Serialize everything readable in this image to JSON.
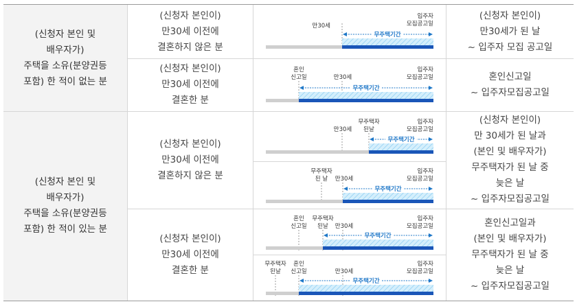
{
  "categories": [
    {
      "lines": [
        "(신청자 본인 및",
        "배우자가)",
        "주택을 소유(분양권등",
        "포함) 한 적이 없는 분"
      ]
    },
    {
      "lines": [
        "(신청자 본인 및",
        "배우자가)",
        "주택을 소유(분양권등",
        "포함) 한 적이 있는 분"
      ]
    }
  ],
  "subcategories": [
    {
      "lines": [
        "(신청자 본인이)",
        "만30세 이전에",
        "결혼하지 않은 분"
      ]
    },
    {
      "lines": [
        "(신청자 본인이)",
        "만30세 이전에",
        "결혼한 분"
      ]
    },
    {
      "lines": [
        "(신청자 본인이)",
        "만30세 이전에",
        "결혼하지 않은 분"
      ]
    },
    {
      "lines": [
        "(신청자 본인이)",
        "만30세 이전에",
        "결혼한 분"
      ]
    }
  ],
  "periods": [
    {
      "lines": [
        "(신청자 본인이)",
        "만30세가 된 날",
        "~ 입주자 모집 공고일"
      ]
    },
    {
      "lines": [
        "혼인신고일",
        "~ 입주자모집공고일"
      ]
    },
    {
      "lines": [
        "(신청자 본인이)",
        "만 30세가 된 날과",
        "(본인 및 배우자가)",
        "무주택자가 된 날 중",
        "늦은 날",
        "~ 입주자모집공고일"
      ]
    },
    {
      "lines": [
        "혼인신고일과",
        "(본인 및 배우자가)",
        "무주택자가 된 날 중",
        "늦은 날",
        "~ 입주자모집공고일"
      ]
    }
  ],
  "timeline_labels": {
    "age30": "만30세",
    "announce": [
      "입주자",
      "모집공고일"
    ],
    "marriage": [
      "혼인",
      "신고일"
    ],
    "nonowner_a": [
      "무주택자",
      "된날"
    ],
    "nonowner_b": [
      "무주택자",
      "된 날"
    ],
    "nonowner_c": [
      "무주택자",
      "된날"
    ],
    "nonowner_d": [
      "무주택자",
      "된날"
    ],
    "period": "무주택기간"
  },
  "colors": {
    "bar_dark": "#1a56b8",
    "bar_hatch": "#9fd6f5",
    "bar_gray": "#cfcfcf",
    "label": "#1f78c8"
  }
}
